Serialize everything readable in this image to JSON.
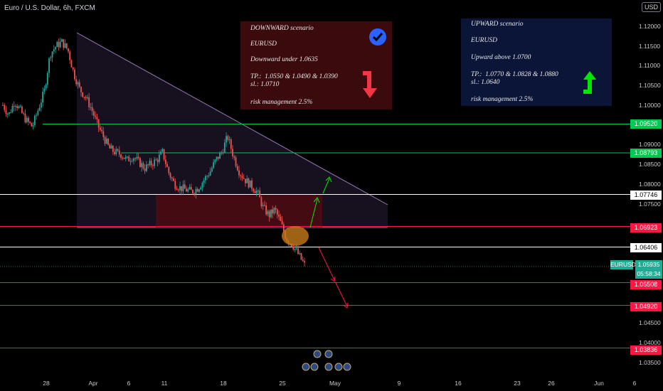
{
  "header": {
    "title": "Euro / U.S. Dollar, 6h, FXCM",
    "currency_button": "USD"
  },
  "downward_card": {
    "title": "DOWNWARD scenario",
    "pair": "EURUSD",
    "condition": "Downward under 1.0635",
    "tp": "TP.:  1.0550 & 1.0490 & 1.0390",
    "sl": "sl.: 1.0710",
    "risk": "risk management 2.5%",
    "check_icon": "check-circle-icon",
    "arrow_icon": "arrow-down-icon",
    "colors": {
      "bg": "#3a0a0d",
      "badge": "#2962ff",
      "arrow": "#f23645"
    }
  },
  "upward_card": {
    "title": "UPWARD scenario",
    "pair": "EURUSD",
    "condition": "Upward above 1.0700",
    "tp": "TP.:  1.0770 & 1.0828 & 1.0880",
    "sl": "sl.: 1.0640",
    "risk": "risk management 2.5%",
    "arrow_icon": "arrow-up-icon",
    "colors": {
      "bg": "#0b1537",
      "arrow": "#00e600"
    }
  },
  "price_axis": [
    "1.12000",
    "1.11500",
    "1.11000",
    "1.10500",
    "1.10000",
    "1.09000",
    "1.08500",
    "1.08000",
    "1.07500",
    "1.04500",
    "1.04000",
    "1.03500"
  ],
  "time_axis": [
    "28",
    "Apr",
    "6",
    "11",
    "18",
    "25",
    "May",
    "9",
    "16",
    "23",
    "26",
    "Jun",
    "6"
  ],
  "price_labels": [
    {
      "text": "1.09520",
      "price": 1.0952,
      "color": "#00c853"
    },
    {
      "text": "1.08793",
      "price": 1.08793,
      "color": "#00c853"
    },
    {
      "text": "1.07746",
      "price": 1.07746,
      "color": "#ffffff"
    },
    {
      "text": "1.06923",
      "price": 1.06923,
      "color": "#ff1744"
    },
    {
      "text": "1.06406",
      "price": 1.06406,
      "color": "#ffffff"
    },
    {
      "text": "1.05508",
      "price": 1.05508,
      "color": "#ff1744"
    },
    {
      "text": "1.04920",
      "price": 1.0492,
      "color": "#ff1744"
    },
    {
      "text": "1.03836",
      "price": 1.03836,
      "color": "#ff1744"
    }
  ],
  "current": {
    "symbol": "EURUSD",
    "price": "1.05935",
    "countdown": "05:58:34",
    "color": "#22ab94"
  },
  "chart_data": {
    "type": "candlestick",
    "symbol": "EURUSD",
    "timeframe": "6h",
    "ylim": [
      1.0335,
      1.1225
    ],
    "horizontal_levels": [
      1.0952,
      1.08793,
      1.07746,
      1.06923,
      1.06406,
      1.05508,
      1.0492,
      1.03836
    ],
    "candles_close_trend": [
      1.1,
      1.0975,
      1.101,
      1.0985,
      1.096,
      1.0945,
      1.099,
      1.1035,
      1.113,
      1.115,
      1.116,
      1.114,
      1.108,
      1.104,
      1.102,
      1.099,
      1.095,
      1.092,
      1.089,
      1.088,
      1.0875,
      1.086,
      1.087,
      1.0855,
      1.084,
      1.085,
      1.086,
      1.088,
      1.083,
      1.08,
      1.079,
      1.0785,
      1.078,
      1.079,
      1.081,
      1.083,
      1.086,
      1.088,
      1.092,
      1.087,
      1.083,
      1.081,
      1.0795,
      1.078,
      1.074,
      1.072,
      1.0735,
      1.07,
      1.066,
      1.0645,
      1.062,
      1.0594
    ],
    "price_range": {
      "open": 1.0594,
      "high": 1.064,
      "low": 1.0585,
      "close": 1.0594
    }
  }
}
